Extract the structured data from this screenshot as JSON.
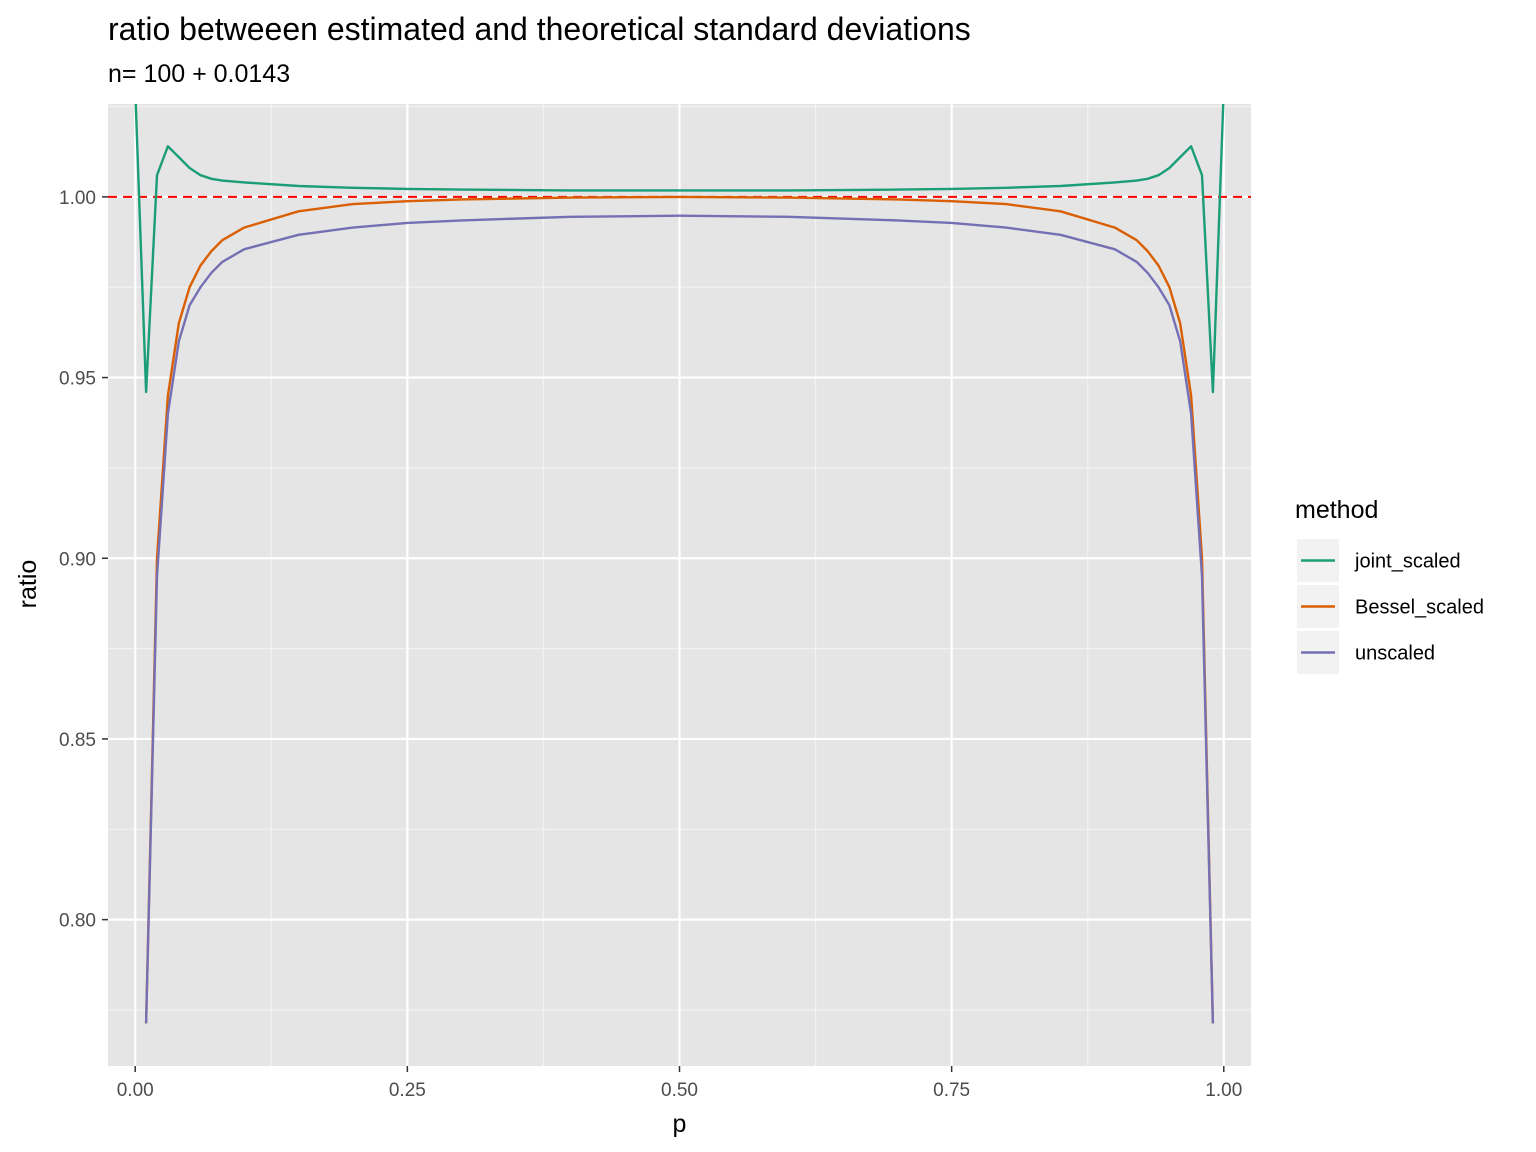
{
  "chart_data": {
    "type": "line",
    "title": "ratio betweeen estimated and theoretical standard deviations",
    "subtitle": "n= 100 + 0.0143",
    "xlabel": "p",
    "ylabel": "ratio",
    "xlim": [
      -0.025,
      1.025
    ],
    "ylim": [
      0.7595,
      1.0257
    ],
    "x_ticks": [
      0.0,
      0.25,
      0.5,
      0.75,
      1.0
    ],
    "x_tick_labels": [
      "0.00",
      "0.25",
      "0.50",
      "0.75",
      "1.00"
    ],
    "y_ticks": [
      0.8,
      0.85,
      0.9,
      0.95,
      1.0
    ],
    "y_tick_labels": [
      "0.80",
      "0.85",
      "0.90",
      "0.95",
      "1.00"
    ],
    "grid": true,
    "background": "#e5e5e5",
    "reference_line": {
      "y": 1.0,
      "color": "#ff0000",
      "style": "dashed"
    },
    "legend": {
      "title": "method",
      "position": "right",
      "entries": [
        {
          "label": "joint_scaled",
          "color": "#1b9e77"
        },
        {
          "label": "Bessel_scaled",
          "color": "#d95f02"
        },
        {
          "label": "unscaled",
          "color": "#7570b3"
        }
      ]
    },
    "series": [
      {
        "name": "joint_scaled",
        "color": "#1b9e77",
        "x": [
          0.0,
          0.01,
          0.02,
          0.03,
          0.04,
          0.05,
          0.06,
          0.07,
          0.08,
          0.1,
          0.15,
          0.2,
          0.25,
          0.3,
          0.4,
          0.5,
          0.6,
          0.7,
          0.75,
          0.8,
          0.85,
          0.9,
          0.92,
          0.93,
          0.94,
          0.95,
          0.96,
          0.97,
          0.98,
          0.99,
          1.0
        ],
        "y": [
          1.03,
          0.946,
          1.006,
          1.014,
          1.011,
          1.008,
          1.006,
          1.005,
          1.0045,
          1.004,
          1.003,
          1.0025,
          1.0022,
          1.002,
          1.0018,
          1.0018,
          1.0018,
          1.002,
          1.0022,
          1.0025,
          1.003,
          1.004,
          1.0045,
          1.005,
          1.006,
          1.008,
          1.011,
          1.014,
          1.006,
          0.946,
          1.03
        ]
      },
      {
        "name": "Bessel_scaled",
        "color": "#d95f02",
        "x": [
          0.01,
          0.02,
          0.03,
          0.04,
          0.05,
          0.06,
          0.07,
          0.08,
          0.1,
          0.15,
          0.2,
          0.25,
          0.3,
          0.4,
          0.5,
          0.6,
          0.7,
          0.75,
          0.8,
          0.85,
          0.9,
          0.92,
          0.93,
          0.94,
          0.95,
          0.96,
          0.97,
          0.98,
          0.99
        ],
        "y": [
          0.7713,
          0.9,
          0.945,
          0.965,
          0.975,
          0.981,
          0.985,
          0.988,
          0.9915,
          0.996,
          0.998,
          0.9988,
          0.9993,
          0.9998,
          1.0,
          0.9998,
          0.9993,
          0.9988,
          0.998,
          0.996,
          0.9915,
          0.988,
          0.985,
          0.981,
          0.975,
          0.965,
          0.945,
          0.9,
          0.7713
        ]
      },
      {
        "name": "unscaled",
        "color": "#7570b3",
        "x": [
          0.01,
          0.02,
          0.03,
          0.04,
          0.05,
          0.06,
          0.07,
          0.08,
          0.1,
          0.15,
          0.2,
          0.25,
          0.3,
          0.4,
          0.5,
          0.6,
          0.7,
          0.75,
          0.8,
          0.85,
          0.9,
          0.92,
          0.93,
          0.94,
          0.95,
          0.96,
          0.97,
          0.98,
          0.99
        ],
        "y": [
          0.7713,
          0.895,
          0.94,
          0.96,
          0.97,
          0.975,
          0.979,
          0.982,
          0.9855,
          0.9895,
          0.9915,
          0.9928,
          0.9935,
          0.9945,
          0.9948,
          0.9945,
          0.9935,
          0.9928,
          0.9915,
          0.9895,
          0.9855,
          0.982,
          0.979,
          0.975,
          0.97,
          0.96,
          0.94,
          0.895,
          0.7713
        ]
      }
    ]
  }
}
